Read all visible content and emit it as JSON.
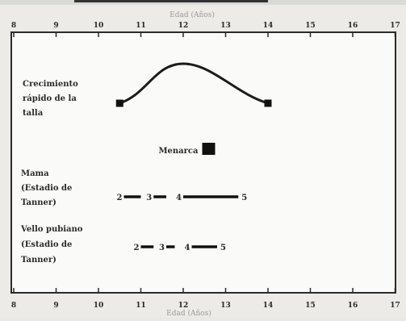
{
  "header": {
    "axis_title_top": "Edad (Años)"
  },
  "footer": {
    "axis_title_bottom": "Edad (Años)"
  },
  "axis": {
    "ticks": [
      "8",
      "9",
      "10",
      "11",
      "12",
      "13",
      "14",
      "15",
      "16",
      "17"
    ]
  },
  "rows": {
    "growth": {
      "label_lines": [
        "Crecimiento",
        "rápido de la",
        "talla"
      ],
      "start": 10.5,
      "peak": 12,
      "end": 14
    },
    "menarche": {
      "label": "Menarca",
      "age": 12.6
    },
    "breast": {
      "label_lines": [
        "Mama",
        "(Estadio de",
        "Tanner)"
      ],
      "stages": [
        {
          "label": "2",
          "start": 10.6,
          "end": 11.0
        },
        {
          "label": "3",
          "start": 11.3,
          "end": 11.6
        },
        {
          "label": "4",
          "start": 12.0,
          "end": 13.3
        }
      ],
      "end_label": "5"
    },
    "pubic": {
      "label_lines": [
        "Vello pubiano",
        "(Estadio de",
        "Tanner)"
      ],
      "stages": [
        {
          "label": "2",
          "start": 11.0,
          "end": 11.3
        },
        {
          "label": "3",
          "start": 11.6,
          "end": 11.8
        },
        {
          "label": "4",
          "start": 12.2,
          "end": 12.8
        }
      ],
      "end_label": "5"
    }
  }
}
